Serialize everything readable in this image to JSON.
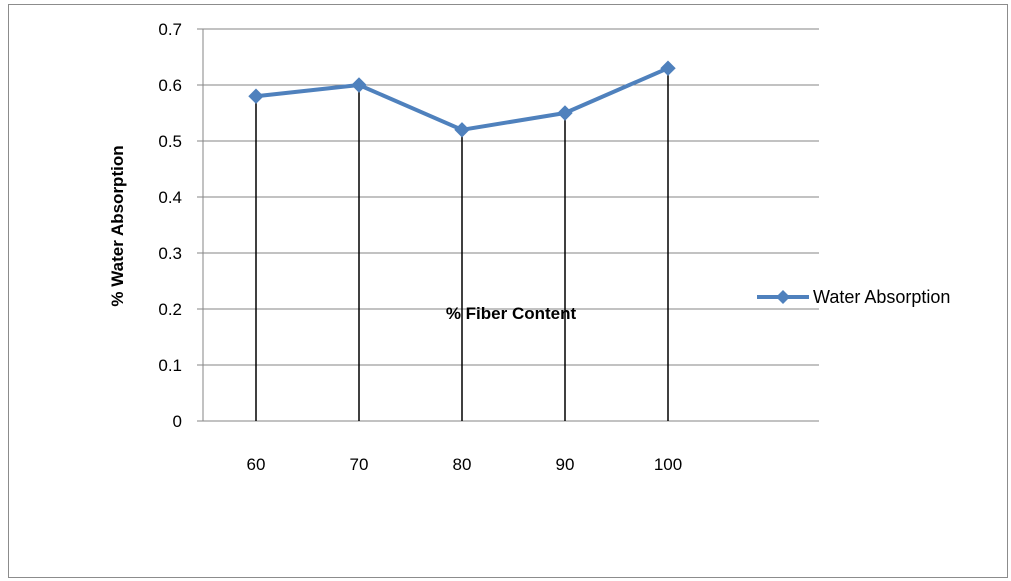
{
  "chart_data": {
    "type": "line",
    "title": "",
    "xlabel": "% Fiber Content",
    "ylabel": "% Water Absorption",
    "categories": [
      "60",
      "70",
      "80",
      "90",
      "100"
    ],
    "series": [
      {
        "name": "Water Absorption",
        "values": [
          0.58,
          0.6,
          0.52,
          0.55,
          0.63
        ],
        "color": "#4f81bd",
        "marker": "diamond",
        "drop_lines": true
      }
    ],
    "ylim": [
      0,
      0.7
    ],
    "yticks": [
      "0",
      "0.1",
      "0.2",
      "0.3",
      "0.4",
      "0.5",
      "0.6",
      "0.7"
    ],
    "grid": "horizontal",
    "legend_position": "right"
  }
}
